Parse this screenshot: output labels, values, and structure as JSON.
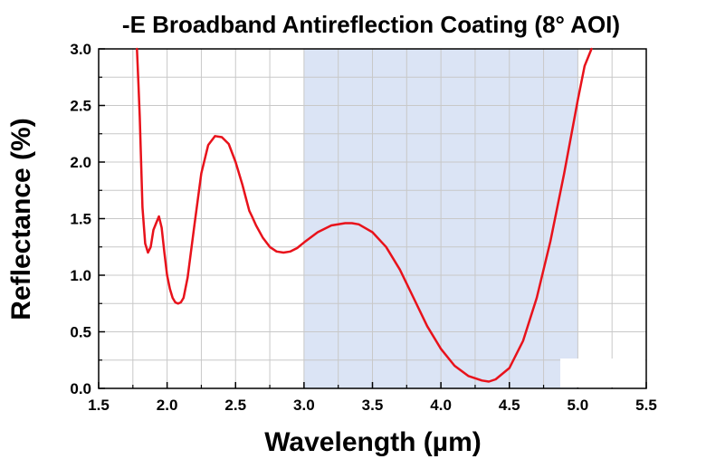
{
  "chart_data": {
    "type": "line",
    "title": "-E Broadband Antireflection Coating (8° AOI)",
    "xlabel": "Wavelength (µm)",
    "ylabel": "Reflectance (%)",
    "xlim": [
      1.5,
      5.5
    ],
    "ylim": [
      0.0,
      3.0
    ],
    "xticks": [
      "1.5",
      "2.0",
      "2.5",
      "3.0",
      "3.5",
      "4.0",
      "4.5",
      "5.0",
      "5.5"
    ],
    "yticks": [
      "0.0",
      "0.5",
      "1.0",
      "1.5",
      "2.0",
      "2.5",
      "3.0"
    ],
    "grid": true,
    "design_band": [
      3.0,
      5.0
    ],
    "colors": {
      "line": "#e8121b",
      "band": "#dbe4f5",
      "grid": "#c8c8c8",
      "axis": "#000000"
    },
    "series": [
      {
        "x": [
          1.78,
          1.79,
          1.8,
          1.81,
          1.82,
          1.84,
          1.86,
          1.88,
          1.9,
          1.92,
          1.94,
          1.96,
          1.98,
          2.0,
          2.02,
          2.04,
          2.06,
          2.08,
          2.1,
          2.12,
          2.15,
          2.2,
          2.25,
          2.3,
          2.35,
          2.4,
          2.45,
          2.5,
          2.55,
          2.58,
          2.6,
          2.62,
          2.65,
          2.7,
          2.75,
          2.8,
          2.85,
          2.9,
          2.95,
          3.0,
          3.1,
          3.2,
          3.3,
          3.35,
          3.4,
          3.5,
          3.6,
          3.7,
          3.8,
          3.9,
          4.0,
          4.1,
          4.2,
          4.3,
          4.35,
          4.4,
          4.5,
          4.6,
          4.7,
          4.8,
          4.9,
          5.0,
          5.05,
          5.1
        ],
        "values": [
          3.0,
          2.7,
          2.4,
          2.0,
          1.6,
          1.28,
          1.2,
          1.25,
          1.4,
          1.46,
          1.52,
          1.42,
          1.2,
          1.0,
          0.88,
          0.8,
          0.76,
          0.75,
          0.76,
          0.8,
          0.98,
          1.45,
          1.9,
          2.15,
          2.23,
          2.22,
          2.16,
          2.0,
          1.8,
          1.66,
          1.57,
          1.52,
          1.44,
          1.33,
          1.25,
          1.21,
          1.2,
          1.21,
          1.24,
          1.29,
          1.38,
          1.44,
          1.46,
          1.46,
          1.45,
          1.38,
          1.25,
          1.05,
          0.8,
          0.55,
          0.35,
          0.2,
          0.11,
          0.07,
          0.06,
          0.08,
          0.18,
          0.42,
          0.8,
          1.3,
          1.9,
          2.55,
          2.85,
          3.0
        ]
      }
    ]
  }
}
